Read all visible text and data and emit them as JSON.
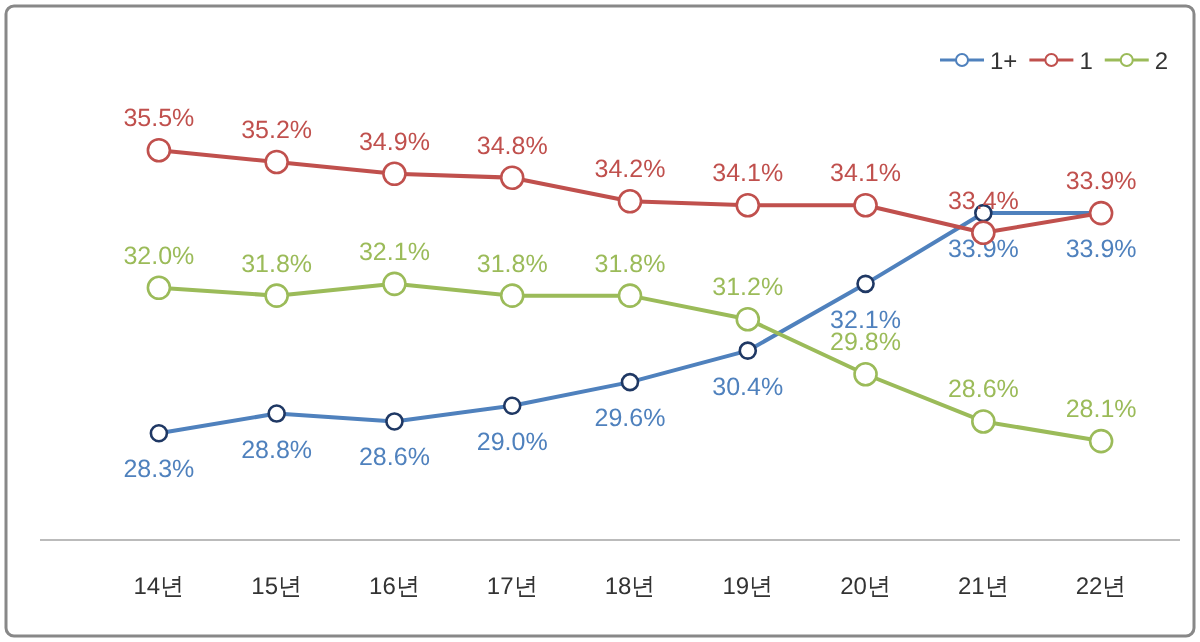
{
  "chart_data": {
    "type": "line",
    "relative": false,
    "categories": [
      "14년",
      "15년",
      "16년",
      "17년",
      "18년",
      "19년",
      "20년",
      "21년",
      "22년"
    ],
    "legend": "top right",
    "marker": "circle",
    "series": [
      {
        "name": "1+",
        "color": "#4f81bd",
        "values": [
          28.3,
          28.8,
          28.6,
          29.0,
          29.6,
          30.4,
          32.1,
          33.9,
          33.9
        ],
        "value_labels": [
          "28.3%",
          "28.8%",
          "28.6%",
          "29.0%",
          "29.6%",
          "30.4%",
          "32.1%",
          "33.9%",
          "33.9%"
        ]
      },
      {
        "name": "1",
        "color": "#c0504d",
        "values": [
          35.5,
          35.2,
          34.9,
          34.8,
          34.2,
          34.1,
          34.1,
          33.4,
          33.9
        ],
        "value_labels": [
          "35.5%",
          "35.2%",
          "34.9%",
          "34.8%",
          "34.2%",
          "34.1%",
          "34.1%",
          "33.4%",
          "33.9%"
        ]
      },
      {
        "name": "2",
        "color": "#9bbb59",
        "values": [
          32.0,
          31.8,
          32.1,
          31.8,
          31.8,
          31.2,
          29.8,
          28.6,
          28.1
        ],
        "value_labels": [
          "32.0%",
          "31.8%",
          "32.1%",
          "31.8%",
          "31.8%",
          "31.2%",
          "29.8%",
          "28.6%",
          "28.1%"
        ]
      }
    ]
  }
}
